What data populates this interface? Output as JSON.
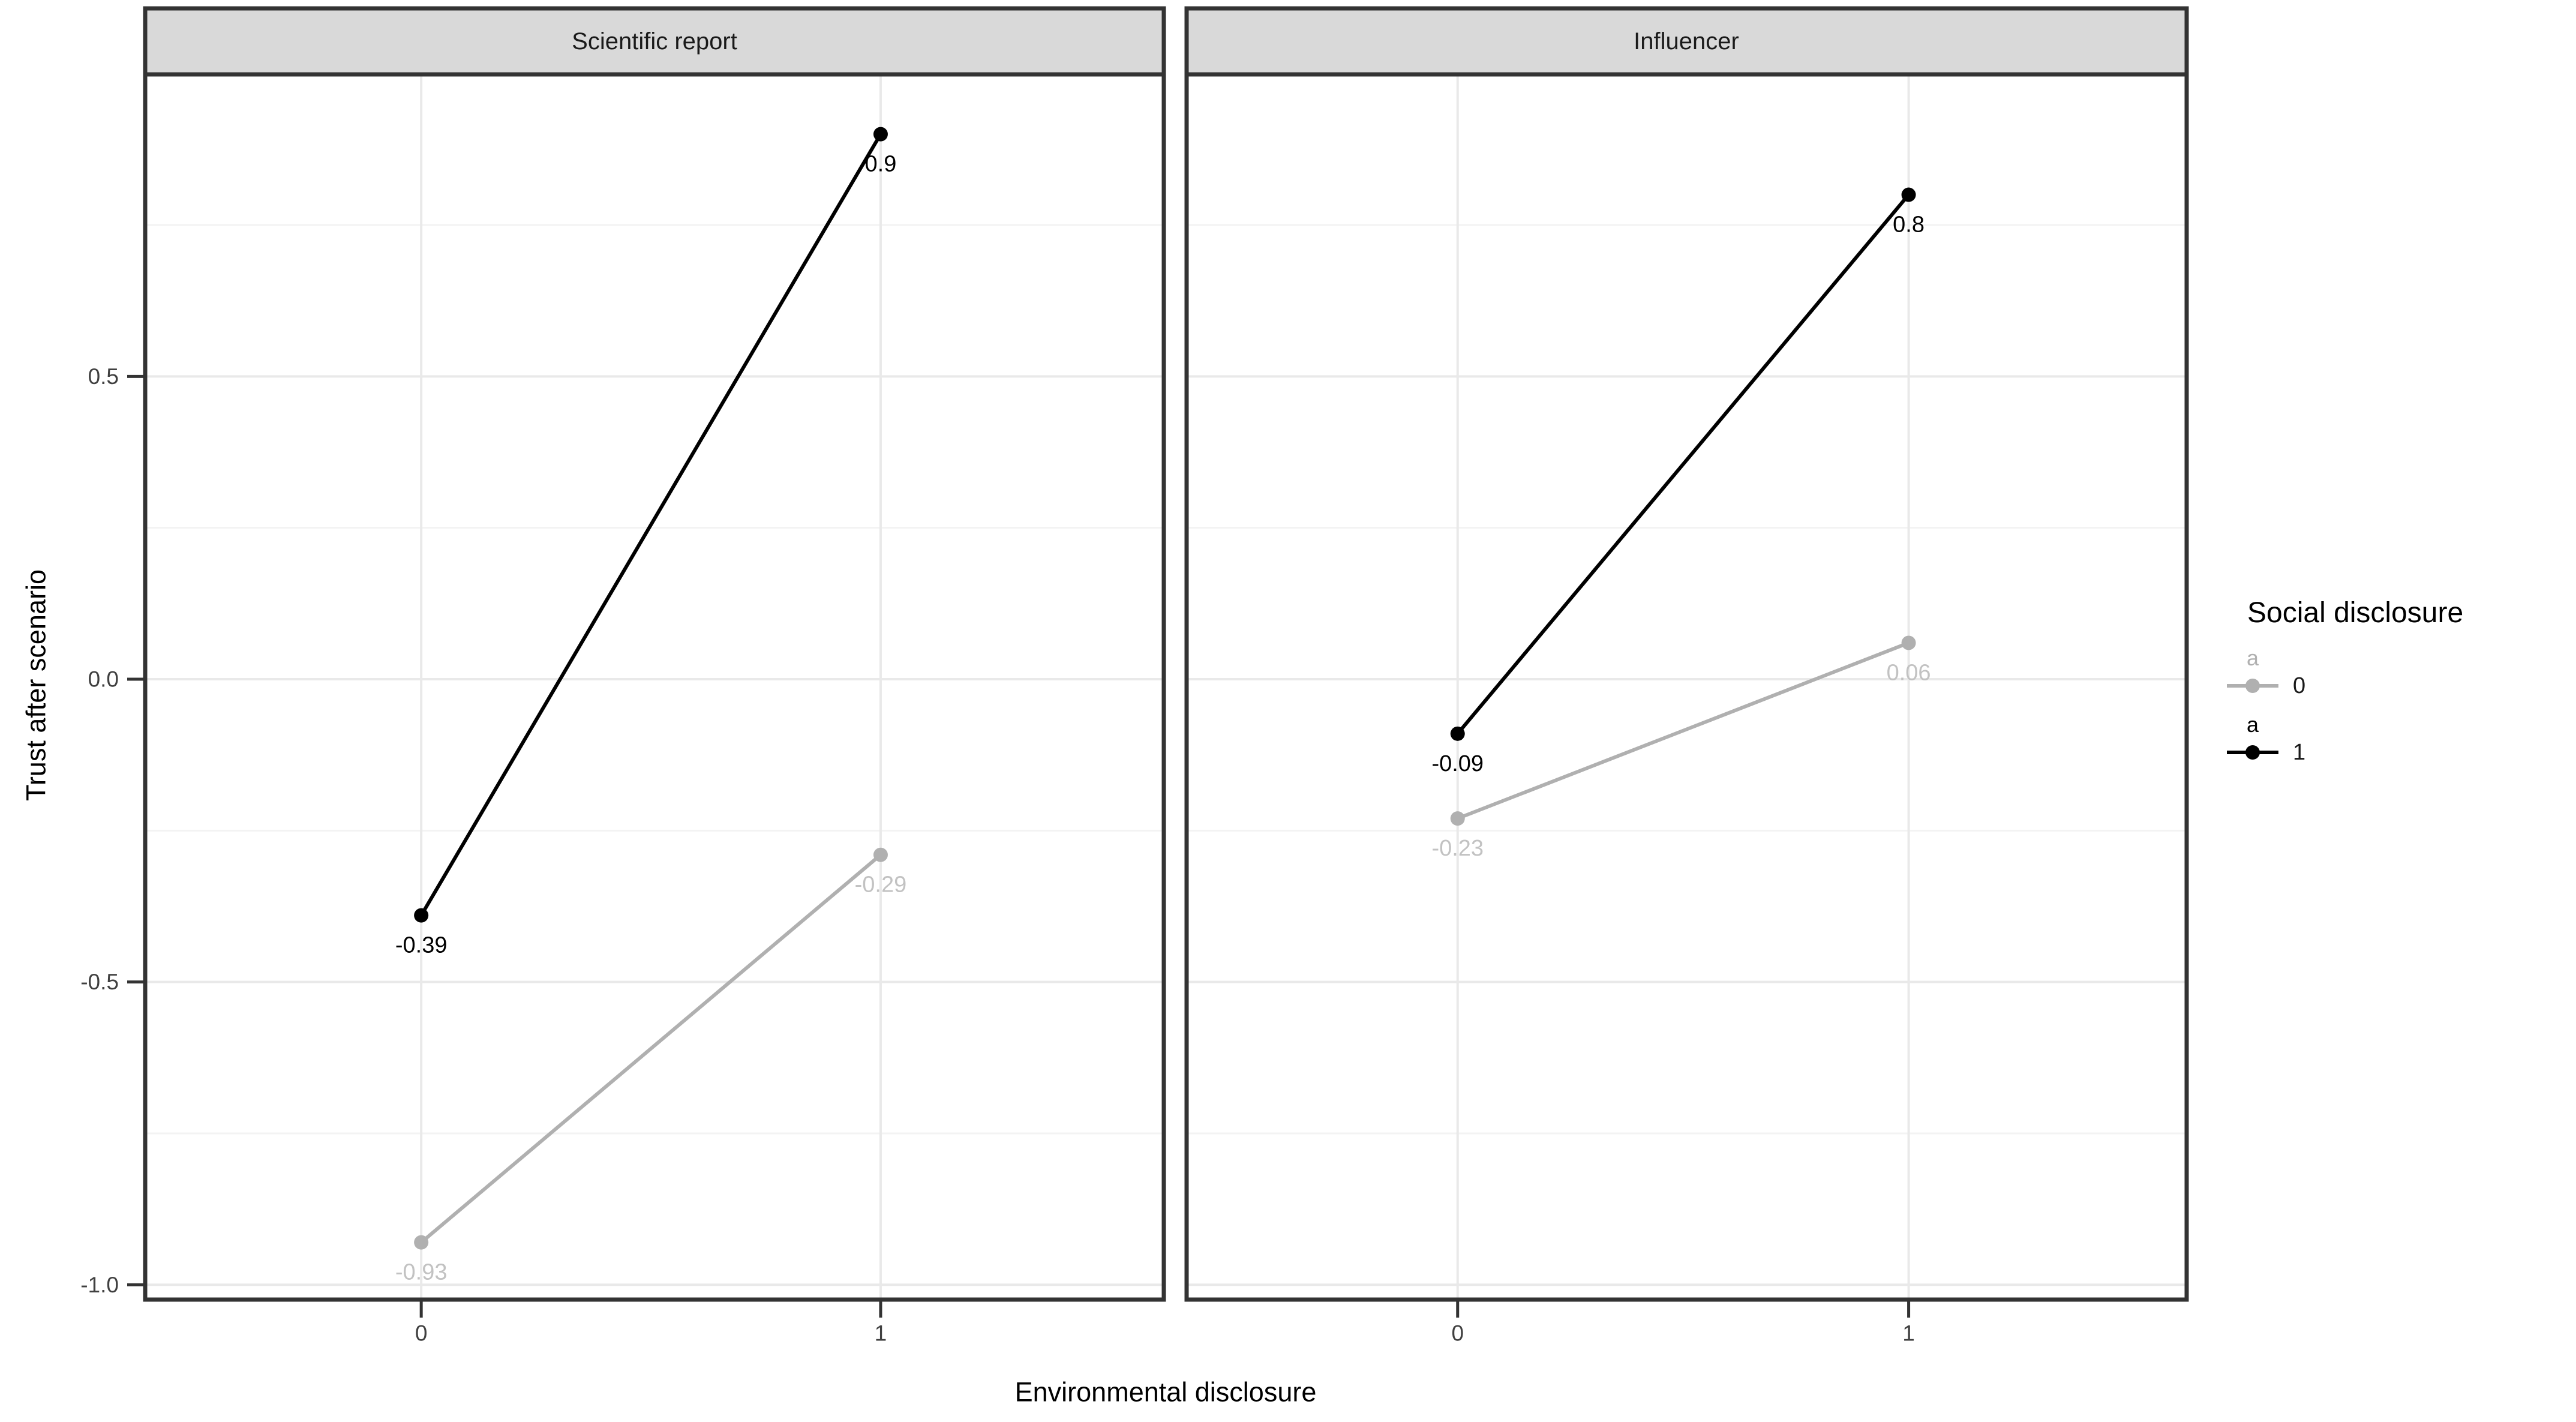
{
  "colors": {
    "background": "#ffffff",
    "strip_fill": "#d9d9d9",
    "panel_border": "#333333",
    "grid_major": "#e9e9e9",
    "grid_minor": "#f3f3f3",
    "tick": "#333333",
    "axis_text": "#404040",
    "series_0": "#b0b0b0",
    "series_0_label": "#c2c2c2",
    "series_1": "#000000"
  },
  "legend": {
    "title": "Social disclosure",
    "glyph_letter": "a",
    "position": "right",
    "items": [
      {
        "label": "0",
        "color": "#b0b0b0"
      },
      {
        "label": "1",
        "color": "#000000"
      }
    ]
  },
  "chart_data": {
    "type": "line",
    "title": "",
    "xlabel": "Environmental disclosure",
    "ylabel": "Trust after scenario",
    "x_values": [
      0,
      1
    ],
    "x_ticks": [
      "0",
      "1"
    ],
    "y_tick_values": [
      0.5,
      0.0,
      -0.5,
      -1.0
    ],
    "y_ticks": [
      "0.5",
      "0.0",
      "-0.5",
      "-1.0"
    ],
    "y_minor_values": [
      0.75,
      0.25,
      -0.25,
      -0.75
    ],
    "ylim": [
      -1.02,
      1.0
    ],
    "grid": "on",
    "legend_position": "right",
    "facets": [
      {
        "label": "Scientific report",
        "series": [
          {
            "name": "0",
            "x": [
              0,
              1
            ],
            "y": [
              -0.93,
              -0.29
            ],
            "labels": [
              "-0.93",
              "-0.29"
            ]
          },
          {
            "name": "1",
            "x": [
              0,
              1
            ],
            "y": [
              -0.39,
              0.9
            ],
            "labels": [
              "-0.39",
              "0.9"
            ]
          }
        ]
      },
      {
        "label": "Influencer",
        "series": [
          {
            "name": "0",
            "x": [
              0,
              1
            ],
            "y": [
              -0.23,
              0.06
            ],
            "labels": [
              "-0.23",
              "0.06"
            ]
          },
          {
            "name": "1",
            "x": [
              0,
              1
            ],
            "y": [
              -0.09,
              0.8
            ],
            "labels": [
              "-0.09",
              "0.8"
            ]
          }
        ]
      }
    ]
  }
}
